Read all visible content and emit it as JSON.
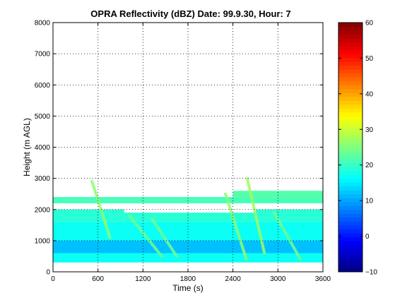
{
  "chart_data": {
    "type": "heatmap",
    "title": "OPRA Reflectivity (dBZ)  Date: 99.9.30, Hour: 7",
    "xlabel": "Time (s)",
    "ylabel": "Height (m AGL)",
    "xlim": [
      0,
      3600
    ],
    "ylim": [
      0,
      8000
    ],
    "x_ticks": [
      0,
      600,
      1200,
      1800,
      2400,
      3000,
      3600
    ],
    "y_ticks": [
      0,
      1000,
      2000,
      3000,
      4000,
      5000,
      6000,
      7000,
      8000
    ],
    "grid": "dotted",
    "colorbar": {
      "range": [
        -10,
        60
      ],
      "ticks": [
        -10,
        0,
        10,
        20,
        30,
        40,
        50,
        60
      ],
      "colormap": "jet"
    },
    "regions": [
      {
        "name": "lower-layer",
        "x": [
          0,
          3600
        ],
        "y": [
          300,
          1600
        ],
        "dbz": 17
      },
      {
        "name": "lower-layer-core",
        "x": [
          0,
          3600
        ],
        "y": [
          600,
          1000
        ],
        "dbz": 12
      },
      {
        "name": "mid-layer-a",
        "x": [
          0,
          950
        ],
        "y": [
          1600,
          2000
        ],
        "dbz": 19
      },
      {
        "name": "mid-layer-b",
        "x": [
          950,
          2700
        ],
        "y": [
          1600,
          1900
        ],
        "dbz": 19
      },
      {
        "name": "mid-layer-c",
        "x": [
          2700,
          3600
        ],
        "y": [
          1600,
          2000
        ],
        "dbz": 19
      },
      {
        "name": "upper-band",
        "x": [
          0,
          3600
        ],
        "y": [
          2200,
          2400
        ],
        "dbz": 21
      },
      {
        "name": "upper-band-right",
        "x": [
          2400,
          3600
        ],
        "y": [
          2350,
          2600
        ],
        "dbz": 22
      }
    ],
    "streaks": [
      {
        "x0": 520,
        "y0": 2900,
        "x1": 760,
        "y1": 1100,
        "dbz": 26
      },
      {
        "x0": 1020,
        "y0": 1800,
        "x1": 1450,
        "y1": 500,
        "dbz": 24
      },
      {
        "x0": 1320,
        "y0": 1700,
        "x1": 1650,
        "y1": 500,
        "dbz": 24
      },
      {
        "x0": 2300,
        "y0": 2500,
        "x1": 2580,
        "y1": 400,
        "dbz": 26
      },
      {
        "x0": 2590,
        "y0": 3000,
        "x1": 2820,
        "y1": 600,
        "dbz": 27
      },
      {
        "x0": 2950,
        "y0": 1900,
        "x1": 3300,
        "y1": 400,
        "dbz": 24
      }
    ]
  }
}
